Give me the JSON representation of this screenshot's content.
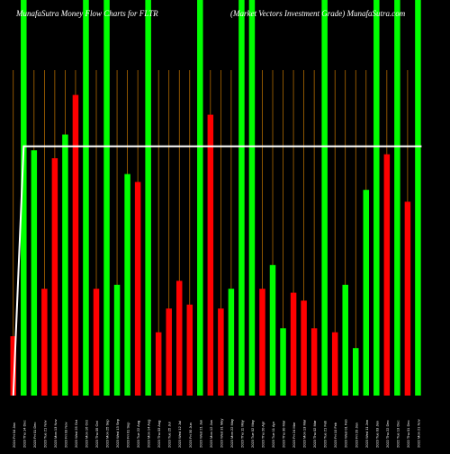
{
  "header": {
    "left": "MunafaSutra  Money Flow  Charts for FLTR",
    "right": "(Market Vectors Investment Grade) MunafaSutra.com"
  },
  "chart_data": {
    "type": "bar",
    "title": "MunafaSutra  Money Flow  Charts for FLTR",
    "subtitle": "(Market Vectors Investment Grade) MunafaSutra.com",
    "xlabel": "",
    "ylabel": "",
    "grid": true,
    "ylim": [
      0,
      100
    ],
    "categories": [
      "2024 Fri 04 Jan",
      "2023 Thu 14 Dec",
      "2023 Fri 01 Dec",
      "2023 Tue 21 Nov",
      "2023 Mon 13 Nov",
      "2023 Fri 03 Nov",
      "2023 Wed 25 Oct",
      "2023 Mon 16 Oct",
      "2023 Thu 05 Oct",
      "2023 Mon 25 Sep",
      "2023 Wed 13 Sep",
      "2023 Fri 01 Sep",
      "2023 Tue 22 Aug",
      "2023 Mon 14 Aug",
      "2023 Thu 03 Aug",
      "2023 Tue 25 Jul",
      "2023 Wed 12 Jul",
      "2023 Fri 30 Jun",
      "2023 Wed 21 Jun",
      "2023 Mon 12 Jun",
      "2023 Wed 31 May",
      "2023 Mon 22 May",
      "2023 Thu 11 May",
      "2023 Tue 02 May",
      "2023 Thu 20 Apr",
      "2023 Tue 11 Apr",
      "2023 Thu 30 Mar",
      "2023 Fri 24 Mar",
      "2023 Mon 13 Mar",
      "2023 Thu 02 Mar",
      "2023 Tue 21 Feb",
      "2023 Fri 10 Feb",
      "2023 Wed 01 Feb",
      "2023 Fri 20 Jan",
      "2023 Wed 11 Jan",
      "2023 Tue 03 Jan",
      "2022 Thu 22 Dec",
      "2022 Tue 13 Dec",
      "2022 Thu 01 Dec",
      "2022 Mon 21 Nov"
    ],
    "values": [
      15,
      100,
      62,
      27,
      60,
      66,
      76,
      100,
      27,
      100,
      28,
      56,
      54,
      100,
      16,
      22,
      29,
      23,
      100,
      71,
      22,
      27,
      100,
      100,
      27,
      33,
      17,
      26,
      24,
      17,
      100,
      16,
      28,
      12,
      52,
      100,
      61,
      100,
      49,
      100
    ],
    "colors": [
      "red",
      "green",
      "green",
      "red",
      "red",
      "green",
      "red",
      "green",
      "red",
      "green",
      "green",
      "green",
      "red",
      "green",
      "red",
      "red",
      "red",
      "red",
      "green",
      "red",
      "red",
      "green",
      "green",
      "green",
      "red",
      "green",
      "green",
      "red",
      "red",
      "red",
      "green",
      "red",
      "green",
      "green",
      "green",
      "green",
      "red",
      "green",
      "red",
      "green"
    ],
    "line": {
      "name": "",
      "values": [
        0,
        63,
        63,
        63,
        63,
        63,
        63,
        63,
        63,
        63,
        63,
        63,
        63,
        63,
        63,
        63,
        63,
        63,
        63,
        63,
        63,
        63,
        63,
        63,
        63,
        63,
        63,
        63,
        63,
        63,
        63,
        63,
        63,
        63,
        63,
        63,
        63,
        63,
        63,
        63
      ],
      "color": "#ffffff"
    },
    "palette": {
      "red": "#ff0000",
      "green": "#00ff00",
      "grid": "#c87800",
      "line": "#ffffff",
      "background": "#000000"
    }
  }
}
